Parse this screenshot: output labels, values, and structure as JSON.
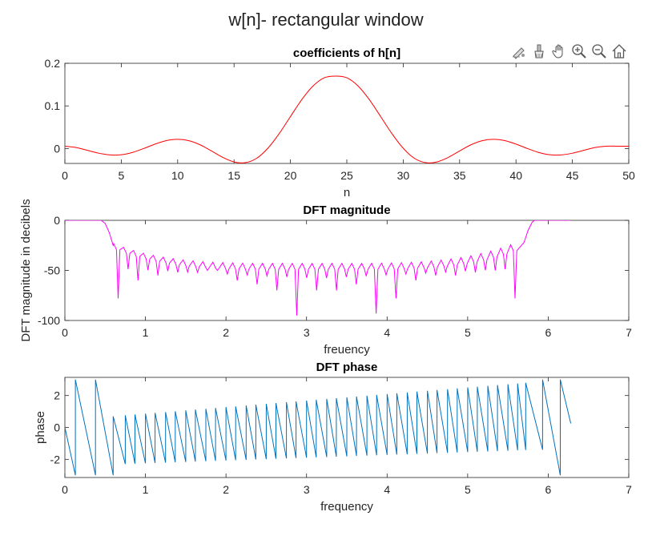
{
  "figure": {
    "suptitle": "w[n]- rectangular window",
    "toolbar": [
      {
        "name": "edit-plot-icon"
      },
      {
        "name": "brush-icon"
      },
      {
        "name": "pan-hand-icon"
      },
      {
        "name": "zoom-in-icon"
      },
      {
        "name": "zoom-out-icon"
      },
      {
        "name": "home-icon"
      }
    ]
  },
  "chart_data": [
    {
      "type": "line",
      "title": "coefficients of h[n]",
      "xlabel": "n",
      "ylabel": "",
      "xlim": [
        0,
        50
      ],
      "ylim": [
        -0.035,
        0.2
      ],
      "xticks": [
        0,
        5,
        10,
        15,
        20,
        25,
        30,
        35,
        40,
        45,
        50
      ],
      "yticks": [
        0,
        0.1,
        0.2
      ],
      "ytick_labels": [
        "0",
        "0.1",
        "0.2"
      ],
      "color": "#ff0000",
      "series": [
        {
          "x": [
            0,
            1,
            2,
            3,
            4,
            5,
            6,
            7,
            8,
            9,
            10,
            11,
            12,
            13,
            14,
            15,
            16,
            17,
            18,
            19,
            20,
            21,
            22,
            23,
            24,
            25,
            26,
            27,
            28,
            29,
            30,
            31,
            32,
            33,
            34,
            35,
            36,
            37,
            38,
            39,
            40,
            41,
            42,
            43,
            44,
            45,
            46,
            47,
            48,
            49,
            50
          ],
          "y": [
            0.0055,
            0.0024,
            -0.0043,
            -0.0109,
            -0.015,
            -0.0146,
            -0.0091,
            0.0001,
            0.0104,
            0.0185,
            0.0216,
            0.0184,
            0.0087,
            -0.0058,
            -0.0208,
            -0.0314,
            -0.0332,
            -0.023,
            0.0007,
            0.0349,
            0.075,
            0.1145,
            0.1466,
            0.166,
            0.17,
            0.166,
            0.1466,
            0.1145,
            0.075,
            0.0349,
            0.0007,
            -0.023,
            -0.0332,
            -0.0314,
            -0.0208,
            -0.0058,
            0.0087,
            0.0184,
            0.0216,
            0.0185,
            0.0104,
            0.0001,
            -0.0091,
            -0.0146,
            -0.015,
            -0.0109,
            -0.0043,
            0.0024,
            0.0055,
            0.0054,
            0.0055
          ]
        }
      ]
    },
    {
      "type": "line",
      "title": "DFT magnitude",
      "xlabel": "freuency",
      "ylabel": "DFT magnitude in decibels",
      "xlim": [
        0,
        7
      ],
      "ylim": [
        -100,
        0
      ],
      "xticks": [
        0,
        1,
        2,
        3,
        4,
        5,
        6,
        7
      ],
      "yticks": [
        0,
        -50,
        -100
      ],
      "color": "#ff00ff",
      "passband": [
        [
          0,
          0.45,
          0
        ],
        [
          5.83,
          6.28,
          0
        ]
      ],
      "transition": [
        [
          0.45,
          0
        ],
        [
          0.5,
          -3
        ],
        [
          0.55,
          -12
        ],
        [
          0.6,
          -25
        ]
      ],
      "sidelobe_floor_db": -36,
      "sidelobe_peak_db": [
        -21,
        -30,
        -33,
        -36,
        -39,
        -41,
        -43,
        -43,
        -43,
        -43,
        -43,
        -43,
        -41,
        -39,
        -36,
        -33,
        -30,
        -21
      ],
      "null_depth_db": [
        -78,
        -60,
        -55,
        -52,
        -50,
        -60,
        -64,
        -70,
        -95,
        -70,
        -64,
        -93,
        -78,
        -60,
        -55,
        -52,
        -50,
        -78
      ]
    },
    {
      "type": "line",
      "title": "DFT phase",
      "xlabel": "frequency",
      "ylabel": "phase",
      "xlim": [
        0,
        7
      ],
      "ylim": [
        -3.14,
        3.14
      ],
      "xticks": [
        0,
        1,
        2,
        3,
        4,
        5,
        6,
        7
      ],
      "yticks": [
        2,
        0,
        -2
      ],
      "color": "#0072bd",
      "wrap_points": [
        0.13,
        0.38,
        0.6,
        0.75,
        0.87,
        1.0,
        1.12,
        1.25,
        1.37,
        1.5,
        1.62,
        1.75,
        1.87,
        2.0,
        2.12,
        2.25,
        2.37,
        2.5,
        2.62,
        2.75,
        2.87,
        3.0,
        3.12,
        3.25,
        3.37,
        3.5,
        3.62,
        3.75,
        3.87,
        4.0,
        4.12,
        4.25,
        4.37,
        4.5,
        4.62,
        4.75,
        4.87,
        5.0,
        5.12,
        5.25,
        5.37,
        5.5,
        5.62,
        5.72,
        5.93,
        6.15
      ],
      "x_end": 6.28,
      "y_end": 0.25
    }
  ]
}
